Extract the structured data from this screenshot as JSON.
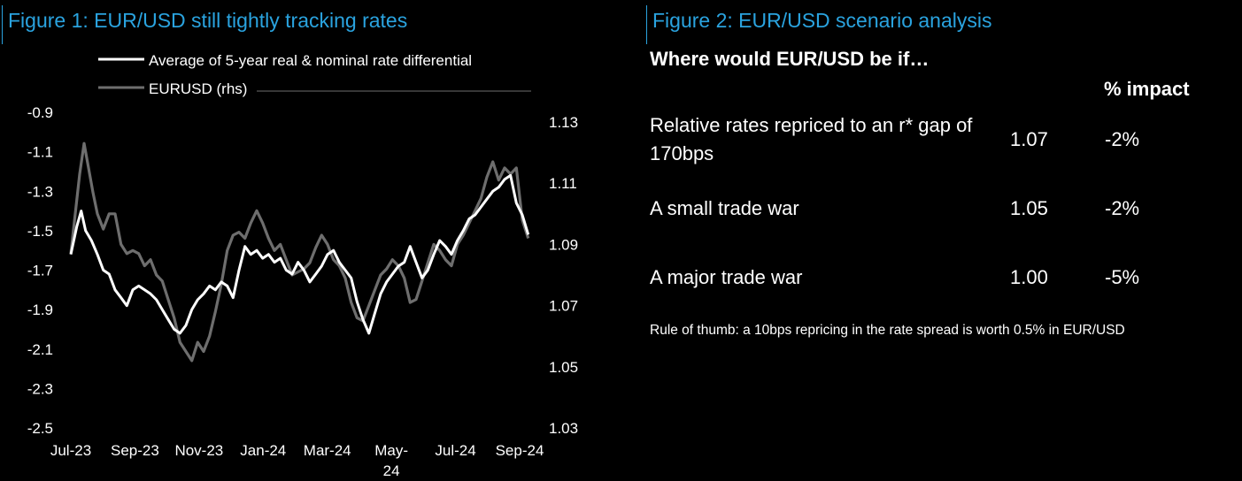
{
  "figure1": {
    "title": "Figure 1: EUR/USD still tightly tracking rates",
    "chart_data": {
      "type": "line",
      "legend": [
        "Average of 5-year real & nominal rate differential",
        "EURUSD (rhs)"
      ],
      "legend_placement": "top",
      "x_tick_labels": [
        "Jul-23",
        "Sep-23",
        "Nov-23",
        "Jan-24",
        "Mar-24",
        "May-24",
        "Jul-24",
        "Sep-24"
      ],
      "y_left_ticks": [
        "-0.9",
        "-1.1",
        "-1.3",
        "-1.5",
        "-1.7",
        "-1.9",
        "-2.1",
        "-2.3",
        "-2.5"
      ],
      "y_left_range": [
        -2.5,
        -0.9
      ],
      "y_right_ticks": [
        "1.13",
        "1.11",
        "1.09",
        "1.07",
        "1.05",
        "1.03"
      ],
      "y_right_range": [
        1.03,
        1.13
      ],
      "x_range": [
        0,
        15.6
      ],
      "grid": false,
      "colors": {
        "rate": "#ffffff",
        "eurusd": "#6e6e6e"
      },
      "series": [
        {
          "name": "Average of 5-year real & nominal rate differential",
          "axis": "left",
          "x": [
            0,
            0.2,
            0.35,
            0.5,
            0.7,
            0.9,
            1.1,
            1.3,
            1.5,
            1.7,
            1.9,
            2.1,
            2.3,
            2.5,
            2.7,
            2.9,
            3.1,
            3.3,
            3.5,
            3.7,
            3.9,
            4.1,
            4.3,
            4.5,
            4.7,
            4.9,
            5.1,
            5.3,
            5.5,
            5.7,
            5.9,
            6.1,
            6.3,
            6.5,
            6.7,
            6.9,
            7.1,
            7.3,
            7.5,
            7.7,
            7.9,
            8.1,
            8.3,
            8.5,
            8.7,
            8.9,
            9.1,
            9.3,
            9.5,
            9.7,
            9.9,
            10.1,
            10.3,
            10.5,
            10.7,
            10.9,
            11.1,
            11.3,
            11.5,
            11.7,
            11.9,
            12.1,
            12.3,
            12.5,
            12.7,
            12.9,
            13.1,
            13.3,
            13.5,
            13.7,
            13.9,
            14.1,
            14.3,
            14.5,
            14.7,
            14.9,
            15.1,
            15.3,
            15.5
          ],
          "values": [
            -1.62,
            -1.48,
            -1.4,
            -1.5,
            -1.55,
            -1.62,
            -1.7,
            -1.72,
            -1.8,
            -1.84,
            -1.88,
            -1.8,
            -1.78,
            -1.8,
            -1.82,
            -1.85,
            -1.9,
            -1.95,
            -2.0,
            -2.02,
            -1.98,
            -1.9,
            -1.85,
            -1.82,
            -1.78,
            -1.8,
            -1.76,
            -1.78,
            -1.84,
            -1.7,
            -1.58,
            -1.62,
            -1.6,
            -1.64,
            -1.62,
            -1.66,
            -1.64,
            -1.7,
            -1.72,
            -1.66,
            -1.7,
            -1.76,
            -1.72,
            -1.68,
            -1.62,
            -1.6,
            -1.66,
            -1.7,
            -1.74,
            -1.86,
            -1.95,
            -2.02,
            -1.92,
            -1.82,
            -1.76,
            -1.72,
            -1.68,
            -1.66,
            -1.58,
            -1.66,
            -1.74,
            -1.7,
            -1.62,
            -1.55,
            -1.58,
            -1.62,
            -1.55,
            -1.5,
            -1.44,
            -1.42,
            -1.38,
            -1.34,
            -1.3,
            -1.28,
            -1.24,
            -1.22,
            -1.36,
            -1.42,
            -1.52
          ]
        },
        {
          "name": "EURUSD (rhs)",
          "axis": "right",
          "x": [
            0,
            0.15,
            0.3,
            0.45,
            0.6,
            0.75,
            0.9,
            1.1,
            1.3,
            1.5,
            1.7,
            1.9,
            2.1,
            2.3,
            2.5,
            2.7,
            2.9,
            3.1,
            3.3,
            3.5,
            3.7,
            3.9,
            4.1,
            4.3,
            4.5,
            4.7,
            4.9,
            5.1,
            5.3,
            5.5,
            5.7,
            5.9,
            6.1,
            6.3,
            6.5,
            6.7,
            6.9,
            7.1,
            7.3,
            7.5,
            7.7,
            7.9,
            8.1,
            8.3,
            8.5,
            8.7,
            8.9,
            9.1,
            9.3,
            9.5,
            9.7,
            9.9,
            10.1,
            10.3,
            10.5,
            10.7,
            10.9,
            11.1,
            11.3,
            11.5,
            11.7,
            11.9,
            12.1,
            12.3,
            12.5,
            12.7,
            12.9,
            13.1,
            13.3,
            13.5,
            13.7,
            13.9,
            14.1,
            14.3,
            14.5,
            14.7,
            14.9,
            15.1,
            15.3,
            15.5
          ],
          "values": [
            1.087,
            1.1,
            1.113,
            1.123,
            1.115,
            1.107,
            1.1,
            1.095,
            1.1,
            1.1,
            1.09,
            1.087,
            1.088,
            1.087,
            1.083,
            1.085,
            1.08,
            1.078,
            1.072,
            1.066,
            1.058,
            1.055,
            1.052,
            1.058,
            1.055,
            1.06,
            1.068,
            1.077,
            1.088,
            1.093,
            1.094,
            1.092,
            1.097,
            1.101,
            1.097,
            1.092,
            1.088,
            1.09,
            1.085,
            1.08,
            1.081,
            1.082,
            1.084,
            1.089,
            1.093,
            1.09,
            1.085,
            1.083,
            1.079,
            1.071,
            1.066,
            1.065,
            1.07,
            1.075,
            1.08,
            1.082,
            1.085,
            1.083,
            1.079,
            1.071,
            1.072,
            1.078,
            1.084,
            1.09,
            1.088,
            1.085,
            1.083,
            1.09,
            1.093,
            1.097,
            1.101,
            1.105,
            1.112,
            1.117,
            1.111,
            1.115,
            1.113,
            1.115,
            1.098,
            1.092
          ]
        }
      ]
    }
  },
  "figure2": {
    "title": "Figure 2: EUR/USD scenario analysis",
    "heading": "Where would EUR/USD be if…",
    "column_header": "% impact",
    "rows": [
      {
        "label": "Relative rates repriced to an r* gap of 170bps",
        "value": "1.07",
        "impact": "-2%"
      },
      {
        "label": "A small trade war",
        "value": "1.05",
        "impact": "-2%"
      },
      {
        "label": "A major trade war",
        "value": "1.00",
        "impact": "-5%"
      }
    ],
    "note": "Rule of thumb: a 10bps repricing in the rate spread is worth 0.5% in EUR/USD"
  }
}
